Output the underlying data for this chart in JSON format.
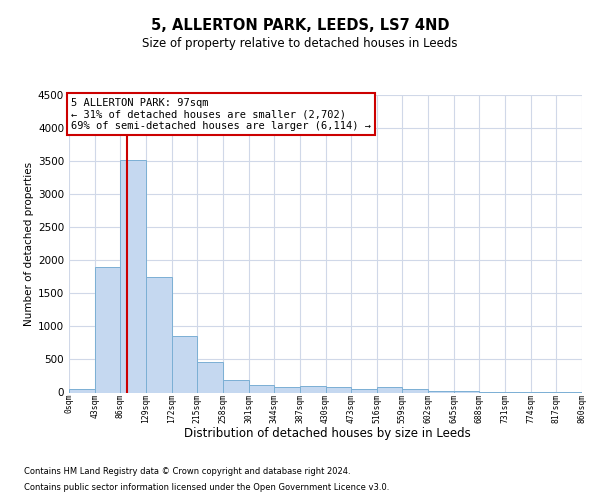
{
  "title": "5, ALLERTON PARK, LEEDS, LS7 4ND",
  "subtitle": "Size of property relative to detached houses in Leeds",
  "xlabel": "Distribution of detached houses by size in Leeds",
  "ylabel": "Number of detached properties",
  "property_size": 97,
  "bin_width": 43,
  "bin_starts": [
    0,
    43,
    86,
    129,
    172,
    215,
    258,
    301,
    344,
    387,
    430,
    473,
    516,
    559,
    602,
    645,
    688,
    731,
    774,
    817
  ],
  "bar_heights": [
    50,
    1900,
    3520,
    1750,
    860,
    455,
    185,
    108,
    80,
    100,
    78,
    55,
    78,
    52,
    27,
    28,
    12,
    6,
    2,
    1
  ],
  "bar_color": "#c5d8f0",
  "bar_edge_color": "#7bafd4",
  "vline_color": "#cc0000",
  "annotation_text": "5 ALLERTON PARK: 97sqm\n← 31% of detached houses are smaller (2,702)\n69% of semi-detached houses are larger (6,114) →",
  "annotation_box_color": "#cc0000",
  "ylim_max": 4500,
  "yticks": [
    0,
    500,
    1000,
    1500,
    2000,
    2500,
    3000,
    3500,
    4000,
    4500
  ],
  "footer_line1": "Contains HM Land Registry data © Crown copyright and database right 2024.",
  "footer_line2": "Contains public sector information licensed under the Open Government Licence v3.0.",
  "bg_color": "#ffffff",
  "grid_color": "#d0d8e8",
  "tick_labels": [
    "0sqm",
    "43sqm",
    "86sqm",
    "129sqm",
    "172sqm",
    "215sqm",
    "258sqm",
    "301sqm",
    "344sqm",
    "387sqm",
    "430sqm",
    "473sqm",
    "516sqm",
    "559sqm",
    "602sqm",
    "645sqm",
    "688sqm",
    "731sqm",
    "774sqm",
    "817sqm",
    "860sqm"
  ]
}
